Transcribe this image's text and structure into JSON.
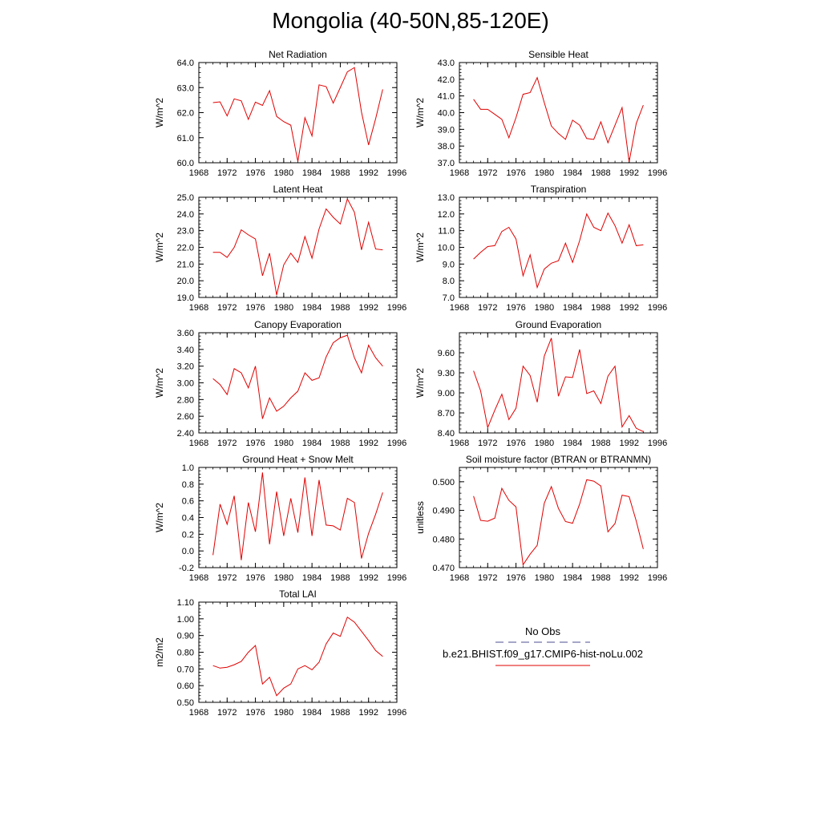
{
  "title": "Mongolia (40-50N,85-120E)",
  "legend": {
    "entries": [
      {
        "name": "No Obs",
        "color": "#7272a8",
        "style": "dashed"
      },
      {
        "name": "b.e21.BHIST.f09_g17.CMIP6-hist-noLu.002",
        "color": "#e00000",
        "style": "solid"
      }
    ]
  },
  "chart_data": [
    {
      "type": "line",
      "title": "Net Radiation",
      "ylabel": "W/m^2",
      "xlim": [
        1968,
        1996
      ],
      "ylim": [
        60.0,
        64.0
      ],
      "xticks": [
        1968,
        1972,
        1976,
        1980,
        1984,
        1988,
        1992,
        1996
      ],
      "xtick_labels": [
        "1968",
        "1972",
        "1976",
        "1980",
        "1984",
        "1988",
        "1992",
        "1996"
      ],
      "yticks": [
        60.0,
        61.0,
        62.0,
        63.0,
        64.0
      ],
      "ytick_labels": [
        "60.0",
        "61.0",
        "62.0",
        "63.0",
        "64.0"
      ],
      "x": [
        1970,
        1971,
        1972,
        1973,
        1974,
        1975,
        1976,
        1977,
        1978,
        1979,
        1980,
        1981,
        1982,
        1983,
        1984,
        1985,
        1986,
        1987,
        1988,
        1989,
        1990,
        1991,
        1992,
        1993,
        1994
      ],
      "series": [
        {
          "values": [
            62.4,
            62.43,
            61.87,
            62.55,
            62.47,
            61.73,
            62.42,
            62.29,
            62.88,
            61.85,
            61.64,
            61.5,
            60.05,
            61.8,
            61.07,
            63.11,
            63.04,
            62.38,
            63.0,
            63.63,
            63.8,
            62.02,
            60.71,
            61.76,
            62.93
          ]
        }
      ]
    },
    {
      "type": "line",
      "title": "Sensible Heat",
      "ylabel": "W/m^2",
      "xlim": [
        1968,
        1996
      ],
      "ylim": [
        37.0,
        43.0
      ],
      "xticks": [
        1968,
        1972,
        1976,
        1980,
        1984,
        1988,
        1992,
        1996
      ],
      "xtick_labels": [
        "1968",
        "1972",
        "1976",
        "1980",
        "1984",
        "1988",
        "1992",
        "1996"
      ],
      "yticks": [
        37.0,
        38.0,
        39.0,
        40.0,
        41.0,
        42.0,
        43.0
      ],
      "ytick_labels": [
        "37.0",
        "38.0",
        "39.0",
        "40.0",
        "41.0",
        "42.0",
        "43.0"
      ],
      "x": [
        1970,
        1971,
        1972,
        1973,
        1974,
        1975,
        1976,
        1977,
        1978,
        1979,
        1980,
        1981,
        1982,
        1983,
        1984,
        1985,
        1986,
        1987,
        1988,
        1989,
        1990,
        1991,
        1992,
        1993,
        1994
      ],
      "series": [
        {
          "values": [
            40.8,
            40.2,
            40.2,
            39.9,
            39.6,
            38.5,
            39.7,
            41.1,
            41.2,
            42.1,
            40.6,
            39.2,
            38.75,
            38.4,
            39.55,
            39.25,
            38.45,
            38.4,
            39.45,
            38.2,
            39.25,
            40.3,
            37.05,
            39.35,
            40.45
          ]
        }
      ]
    },
    {
      "type": "line",
      "title": "Latent Heat",
      "ylabel": "W/m^2",
      "xlim": [
        1968,
        1996
      ],
      "ylim": [
        19.0,
        25.0
      ],
      "xticks": [
        1968,
        1972,
        1976,
        1980,
        1984,
        1988,
        1992,
        1996
      ],
      "xtick_labels": [
        "1968",
        "1972",
        "1976",
        "1980",
        "1984",
        "1988",
        "1992",
        "1996"
      ],
      "yticks": [
        19.0,
        20.0,
        21.0,
        22.0,
        23.0,
        24.0,
        25.0
      ],
      "ytick_labels": [
        "19.0",
        "20.0",
        "21.0",
        "22.0",
        "23.0",
        "24.0",
        "25.0"
      ],
      "x": [
        1970,
        1971,
        1972,
        1973,
        1974,
        1975,
        1976,
        1977,
        1978,
        1979,
        1980,
        1981,
        1982,
        1983,
        1984,
        1985,
        1986,
        1987,
        1988,
        1989,
        1990,
        1991,
        1992,
        1993,
        1994
      ],
      "series": [
        {
          "values": [
            21.7,
            21.7,
            21.4,
            22.0,
            23.05,
            22.75,
            22.5,
            20.3,
            21.65,
            19.15,
            20.95,
            21.65,
            21.1,
            22.65,
            21.35,
            23.1,
            24.3,
            23.8,
            23.4,
            24.9,
            24.1,
            21.85,
            23.5,
            21.9,
            21.85
          ]
        }
      ]
    },
    {
      "type": "line",
      "title": "Transpiration",
      "ylabel": "W/m^2",
      "xlim": [
        1968,
        1996
      ],
      "ylim": [
        7.0,
        13.0
      ],
      "xticks": [
        1968,
        1972,
        1976,
        1980,
        1984,
        1988,
        1992,
        1996
      ],
      "xtick_labels": [
        "1968",
        "1972",
        "1976",
        "1980",
        "1984",
        "1988",
        "1992",
        "1996"
      ],
      "yticks": [
        7.0,
        8.0,
        9.0,
        10.0,
        11.0,
        12.0,
        13.0
      ],
      "ytick_labels": [
        "7.0",
        "8.0",
        "9.0",
        "10.0",
        "11.0",
        "12.0",
        "13.0"
      ],
      "x": [
        1970,
        1971,
        1972,
        1973,
        1974,
        1975,
        1976,
        1977,
        1978,
        1979,
        1980,
        1981,
        1982,
        1983,
        1984,
        1985,
        1986,
        1987,
        1988,
        1989,
        1990,
        1991,
        1992,
        1993,
        1994
      ],
      "series": [
        {
          "values": [
            9.3,
            9.7,
            10.05,
            10.1,
            10.95,
            11.2,
            10.5,
            8.3,
            9.55,
            7.6,
            8.7,
            9.05,
            9.2,
            10.25,
            9.1,
            10.4,
            12.0,
            11.2,
            11.0,
            12.05,
            11.3,
            10.25,
            11.35,
            10.1,
            10.15
          ]
        }
      ]
    },
    {
      "type": "line",
      "title": "Canopy Evaporation",
      "ylabel": "W/m^2",
      "xlim": [
        1968,
        1996
      ],
      "ylim": [
        2.4,
        3.6
      ],
      "xticks": [
        1968,
        1972,
        1976,
        1980,
        1984,
        1988,
        1992,
        1996
      ],
      "xtick_labels": [
        "1968",
        "1972",
        "1976",
        "1980",
        "1984",
        "1988",
        "1992",
        "1996"
      ],
      "yticks": [
        2.4,
        2.6,
        2.8,
        3.0,
        3.2,
        3.4,
        3.6
      ],
      "ytick_labels": [
        "2.40",
        "2.60",
        "2.80",
        "3.00",
        "3.20",
        "3.40",
        "3.60"
      ],
      "x": [
        1970,
        1971,
        1972,
        1973,
        1974,
        1975,
        1976,
        1977,
        1978,
        1979,
        1980,
        1981,
        1982,
        1983,
        1984,
        1985,
        1986,
        1987,
        1988,
        1989,
        1990,
        1991,
        1992,
        1993,
        1994
      ],
      "series": [
        {
          "values": [
            3.05,
            2.98,
            2.86,
            3.17,
            3.12,
            2.94,
            3.2,
            2.57,
            2.82,
            2.66,
            2.72,
            2.82,
            2.9,
            3.12,
            3.03,
            3.06,
            3.31,
            3.48,
            3.54,
            3.57,
            3.3,
            3.12,
            3.45,
            3.3,
            3.2
          ]
        }
      ]
    },
    {
      "type": "line",
      "title": "Ground Evaporation",
      "ylabel": "W/m^2",
      "xlim": [
        1968,
        1996
      ],
      "ylim": [
        8.4,
        9.9
      ],
      "xticks": [
        1968,
        1972,
        1976,
        1980,
        1984,
        1988,
        1992,
        1996
      ],
      "xtick_labels": [
        "1968",
        "1972",
        "1976",
        "1980",
        "1984",
        "1988",
        "1992",
        "1996"
      ],
      "yticks": [
        8.4,
        8.7,
        9.0,
        9.3,
        9.6
      ],
      "ytick_labels": [
        "8.40",
        "8.70",
        "9.00",
        "9.30",
        "9.60"
      ],
      "x": [
        1970,
        1971,
        1972,
        1973,
        1974,
        1975,
        1976,
        1977,
        1978,
        1979,
        1980,
        1981,
        1982,
        1983,
        1984,
        1985,
        1986,
        1987,
        1988,
        1989,
        1990,
        1991,
        1992,
        1993,
        1994
      ],
      "series": [
        {
          "values": [
            9.33,
            9.03,
            8.48,
            8.74,
            8.98,
            8.6,
            8.77,
            9.4,
            9.26,
            8.86,
            9.55,
            9.82,
            8.95,
            9.24,
            9.23,
            9.65,
            8.99,
            9.03,
            8.84,
            9.25,
            9.4,
            8.49,
            8.66,
            8.47,
            8.42
          ]
        }
      ]
    },
    {
      "type": "line",
      "title": "Ground Heat + Snow Melt",
      "ylabel": "W/m^2",
      "xlim": [
        1968,
        1996
      ],
      "ylim": [
        -0.2,
        1.0
      ],
      "xticks": [
        1968,
        1972,
        1976,
        1980,
        1984,
        1988,
        1992,
        1996
      ],
      "xtick_labels": [
        "1968",
        "1972",
        "1976",
        "1980",
        "1984",
        "1988",
        "1992",
        "1996"
      ],
      "yticks": [
        -0.2,
        0.0,
        0.2,
        0.4,
        0.6,
        0.8,
        1.0
      ],
      "ytick_labels": [
        "-0.2",
        "0.0",
        "0.2",
        "0.4",
        "0.6",
        "0.8",
        "1.0"
      ],
      "x": [
        1970,
        1971,
        1972,
        1973,
        1974,
        1975,
        1976,
        1977,
        1978,
        1979,
        1980,
        1981,
        1982,
        1983,
        1984,
        1985,
        1986,
        1987,
        1988,
        1989,
        1990,
        1991,
        1992,
        1993,
        1994
      ],
      "series": [
        {
          "values": [
            -0.05,
            0.56,
            0.32,
            0.66,
            -0.11,
            0.58,
            0.23,
            0.94,
            0.08,
            0.71,
            0.18,
            0.63,
            0.22,
            0.88,
            0.18,
            0.85,
            0.31,
            0.3,
            0.25,
            0.63,
            0.58,
            -0.09,
            0.21,
            0.44,
            0.7
          ]
        }
      ]
    },
    {
      "type": "line",
      "title": "Soil moisture factor (BTRAN or BTRANMN)",
      "ylabel": "unitless",
      "xlim": [
        1968,
        1996
      ],
      "ylim": [
        0.47,
        0.505
      ],
      "xticks": [
        1968,
        1972,
        1976,
        1980,
        1984,
        1988,
        1992,
        1996
      ],
      "xtick_labels": [
        "1968",
        "1972",
        "1976",
        "1980",
        "1984",
        "1988",
        "1992",
        "1996"
      ],
      "yticks": [
        0.47,
        0.48,
        0.49,
        0.5
      ],
      "ytick_labels": [
        "0.470",
        "0.480",
        "0.490",
        "0.500"
      ],
      "x": [
        1970,
        1971,
        1972,
        1973,
        1974,
        1975,
        1976,
        1977,
        1978,
        1979,
        1980,
        1981,
        1982,
        1983,
        1984,
        1985,
        1986,
        1987,
        1988,
        1989,
        1990,
        1991,
        1992,
        1993,
        1994
      ],
      "series": [
        {
          "values": [
            0.495,
            0.4865,
            0.4862,
            0.4873,
            0.4977,
            0.4935,
            0.4912,
            0.471,
            0.4747,
            0.4778,
            0.4925,
            0.4983,
            0.4907,
            0.4861,
            0.4855,
            0.4922,
            0.5007,
            0.5002,
            0.4985,
            0.4825,
            0.4854,
            0.4953,
            0.4948,
            0.4863,
            0.4765
          ]
        }
      ]
    },
    {
      "type": "line",
      "title": "Total LAI",
      "ylabel": "m2/m2",
      "xlim": [
        1968,
        1996
      ],
      "ylim": [
        0.5,
        1.1
      ],
      "xticks": [
        1968,
        1972,
        1976,
        1980,
        1984,
        1988,
        1992,
        1996
      ],
      "xtick_labels": [
        "1968",
        "1972",
        "1976",
        "1980",
        "1984",
        "1988",
        "1992",
        "1996"
      ],
      "yticks": [
        0.5,
        0.6,
        0.7,
        0.8,
        0.9,
        1.0,
        1.1
      ],
      "ytick_labels": [
        "0.50",
        "0.60",
        "0.70",
        "0.80",
        "0.90",
        "1.00",
        "1.10"
      ],
      "x": [
        1970,
        1971,
        1972,
        1973,
        1974,
        1975,
        1976,
        1977,
        1978,
        1979,
        1980,
        1981,
        1982,
        1983,
        1984,
        1985,
        1986,
        1987,
        1988,
        1989,
        1990,
        1991,
        1992,
        1993,
        1994
      ],
      "series": [
        {
          "values": [
            0.72,
            0.705,
            0.71,
            0.725,
            0.745,
            0.8,
            0.84,
            0.61,
            0.65,
            0.54,
            0.585,
            0.61,
            0.7,
            0.72,
            0.695,
            0.74,
            0.85,
            0.915,
            0.895,
            1.01,
            0.98,
            0.925,
            0.87,
            0.81,
            0.775
          ]
        }
      ]
    }
  ]
}
